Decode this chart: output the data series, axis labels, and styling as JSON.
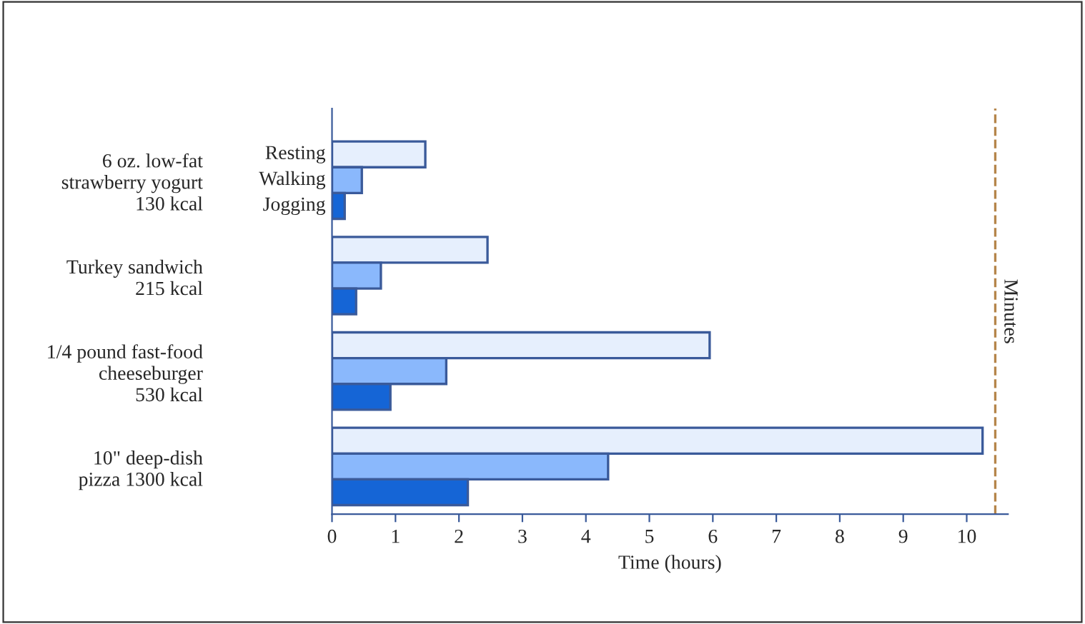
{
  "chart_data": {
    "type": "bar",
    "orientation": "horizontal",
    "xlabel": "Time (hours)",
    "categories": [
      "6 oz. low-fat\nstrawberry yogurt\n130 kcal",
      "Turkey sandwich\n215 kcal",
      "1/4 pound fast-food\ncheeseburger\n530 kcal",
      "10\" deep-dish\npizza 1300 kcal"
    ],
    "series": [
      {
        "name": "Resting",
        "color": "#e6effd",
        "values": [
          1.47,
          2.45,
          5.95,
          10.25
        ]
      },
      {
        "name": "Walking",
        "color": "#8ab8fc",
        "values": [
          0.47,
          0.77,
          1.8,
          4.35
        ]
      },
      {
        "name": "Jogging",
        "color": "#1565d6",
        "values": [
          0.2,
          0.38,
          0.92,
          2.14
        ]
      }
    ],
    "xlim": [
      0,
      10.65
    ],
    "xticks": [
      0,
      1,
      2,
      3,
      4,
      5,
      6,
      7,
      8,
      9,
      10
    ],
    "ref_lines": [
      {
        "axis": "x",
        "value": 10.45,
        "label": "Minutes",
        "color": "#b5854a",
        "line_style": "dashed"
      }
    ],
    "grid": false,
    "legend": false
  }
}
